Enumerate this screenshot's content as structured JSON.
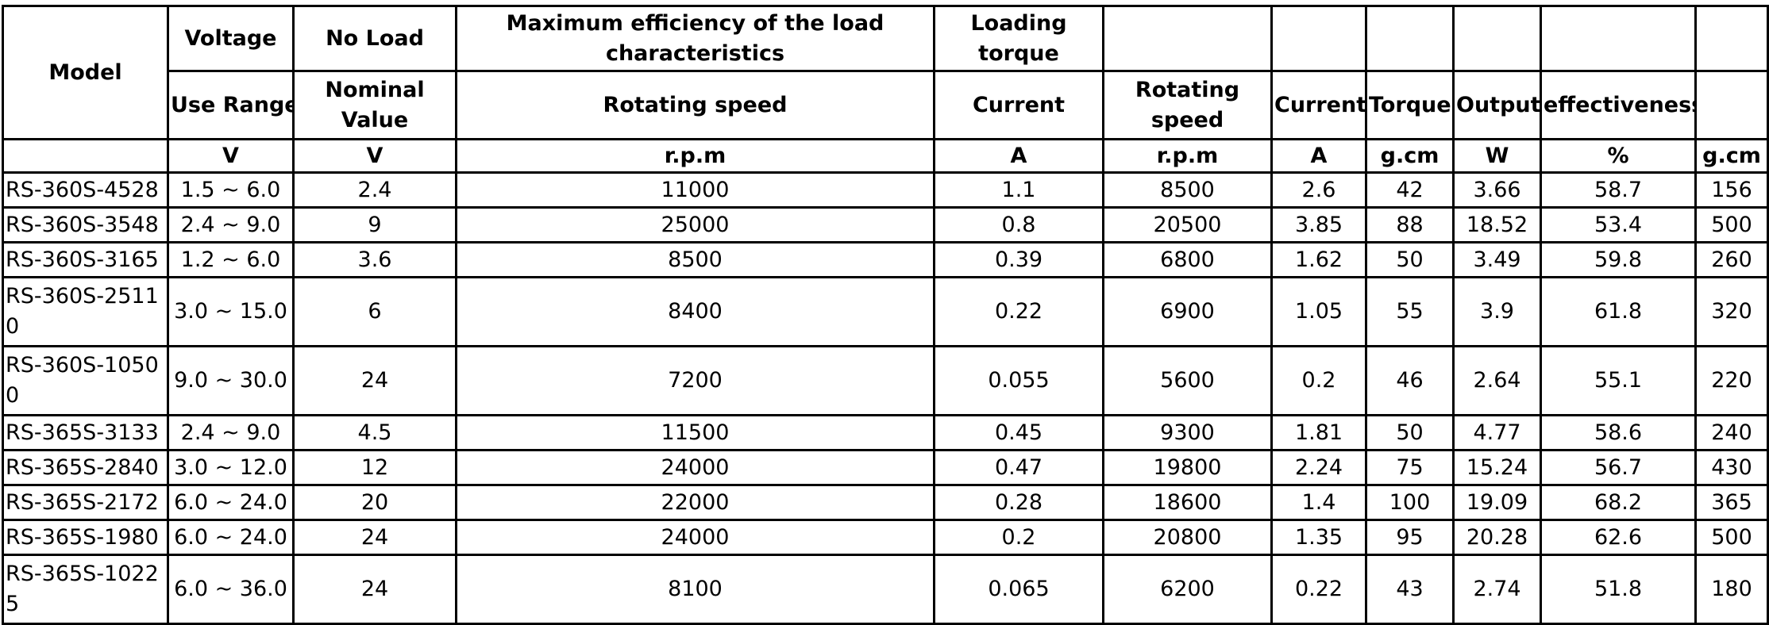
{
  "header": {
    "model": "Model",
    "voltage": "Voltage",
    "no_load": "No Load",
    "max_eff": "Maximum efficiency of the load characteristics",
    "loading_torque": "Loading torque",
    "use_range": "Use Range",
    "nominal_value": "Nominal Value",
    "rotating_speed": "Rotating speed",
    "current": "Current",
    "rotating_speed_2": "Rotating speed",
    "current_2": "Current",
    "torque": "Torque",
    "output": "Output",
    "effectiveness": "effectiveness",
    "units": [
      "V",
      "V",
      "r.p.m",
      "A",
      "r.p.m",
      "A",
      "g.cm",
      "W",
      "%",
      "g.cm"
    ]
  },
  "rows": [
    [
      "RS-360S-4528",
      "1.5 ~ 6.0",
      "2.4",
      "11000",
      "1.1",
      "8500",
      "2.6",
      "42",
      "3.66",
      "58.7",
      "156"
    ],
    [
      "RS-360S-3548",
      "2.4 ~ 9.0",
      "9",
      "25000",
      "0.8",
      "20500",
      "3.85",
      "88",
      "18.52",
      "53.4",
      "500"
    ],
    [
      "RS-360S-3165",
      "1.2 ~ 6.0",
      "3.6",
      "8500",
      "0.39",
      "6800",
      "1.62",
      "50",
      "3.49",
      "59.8",
      "260"
    ],
    [
      "RS-360S-25110",
      "3.0 ~ 15.0",
      "6",
      "8400",
      "0.22",
      "6900",
      "1.05",
      "55",
      "3.9",
      "61.8",
      "320"
    ],
    [
      "RS-360S-10500",
      "9.0 ~ 30.0",
      "24",
      "7200",
      "0.055",
      "5600",
      "0.2",
      "46",
      "2.64",
      "55.1",
      "220"
    ],
    [
      "RS-365S-3133",
      "2.4 ~ 9.0",
      "4.5",
      "11500",
      "0.45",
      "9300",
      "1.81",
      "50",
      "4.77",
      "58.6",
      "240"
    ],
    [
      "RS-365S-2840",
      "3.0 ~ 12.0",
      "12",
      "24000",
      "0.47",
      "19800",
      "2.24",
      "75",
      "15.24",
      "56.7",
      "430"
    ],
    [
      "RS-365S-2172",
      "6.0 ~ 24.0",
      "20",
      "22000",
      "0.28",
      "18600",
      "1.4",
      "100",
      "19.09",
      "68.2",
      "365"
    ],
    [
      "RS-365S-1980",
      "6.0 ~ 24.0",
      "24",
      "24000",
      "0.2",
      "20800",
      "1.35",
      "95",
      "20.28",
      "62.6",
      "500"
    ],
    [
      "RS-365S-10225",
      "6.0 ~ 36.0",
      "24",
      "8100",
      "0.065",
      "6200",
      "0.22",
      "43",
      "2.74",
      "51.8",
      "180"
    ]
  ]
}
